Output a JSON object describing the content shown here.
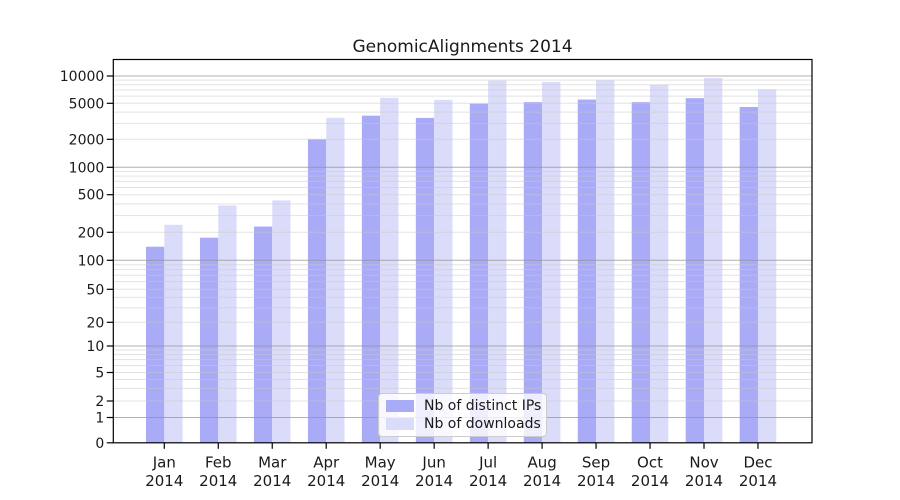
{
  "chart_data": {
    "type": "bar",
    "title": "GenomicAlignments 2014",
    "year": "2014",
    "months": [
      "Jan",
      "Feb",
      "Mar",
      "Apr",
      "May",
      "Jun",
      "Jul",
      "Aug",
      "Sep",
      "Oct",
      "Nov",
      "Dec"
    ],
    "series": [
      {
        "name": "Nb of distinct IPs",
        "color": "#aaabf6",
        "values": [
          140,
          175,
          230,
          2000,
          3650,
          3450,
          4950,
          5150,
          5500,
          5150,
          5700,
          4550
        ]
      },
      {
        "name": "Nb of downloads",
        "color": "#dbdcfa",
        "values": [
          240,
          385,
          435,
          3450,
          5750,
          5450,
          8900,
          8600,
          9000,
          8000,
          9500,
          7150
        ]
      }
    ],
    "y_axis": {
      "tick_values": [
        0,
        1,
        2,
        5,
        10,
        20,
        50,
        100,
        200,
        500,
        1000,
        2000,
        5000,
        10000
      ],
      "tick_labels": [
        "0",
        "1",
        "2",
        "5",
        "10",
        "20",
        "50",
        "100",
        "200",
        "500",
        "1000",
        "2000",
        "5000",
        "10000"
      ],
      "scale": "log",
      "range": [
        0,
        10000
      ]
    },
    "grid": true,
    "legend_position": "bottom-center"
  }
}
